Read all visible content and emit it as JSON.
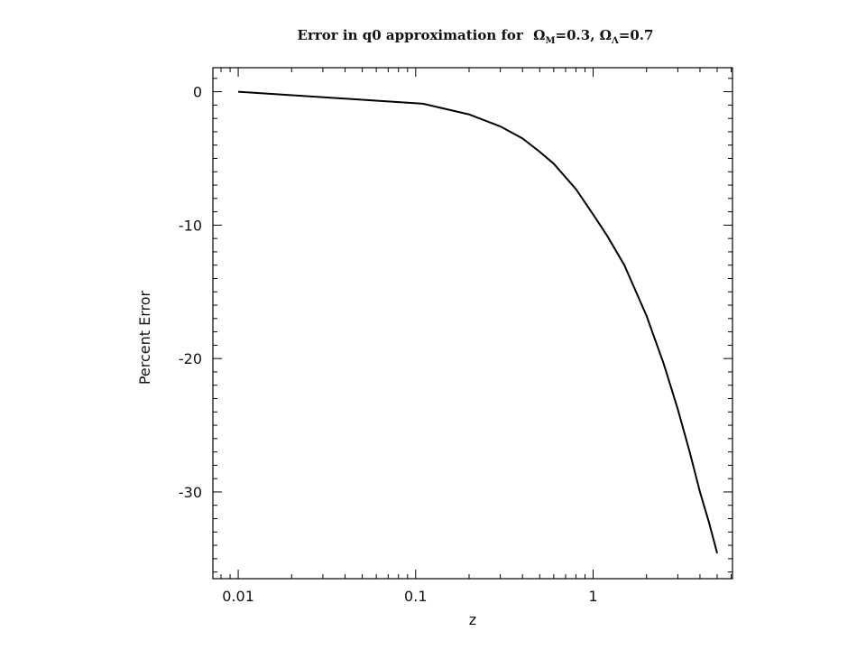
{
  "chart_data": {
    "type": "line",
    "title": "Error in q0 approximation  for",
    "title_params": [
      {
        "symbol": "Ω",
        "sub": "M",
        "text": "=0.3"
      },
      {
        "symbol": "Ω",
        "sub": "Λ",
        "text": "=0.7"
      }
    ],
    "title_separator": ", ",
    "xlabel": "z",
    "ylabel": "Percent Error",
    "xscale": "log",
    "xlim": [
      0.0072,
      6.1
    ],
    "ylim": [
      -36.5,
      1.8
    ],
    "xticks": [
      {
        "value": 0.01,
        "label": "0.01"
      },
      {
        "value": 0.1,
        "label": "0.1"
      },
      {
        "value": 1,
        "label": "1"
      }
    ],
    "yticks": [
      {
        "value": 0,
        "label": "0"
      },
      {
        "value": -10,
        "label": "-10"
      },
      {
        "value": -20,
        "label": "-20"
      },
      {
        "value": -30,
        "label": "-30"
      }
    ],
    "series": [
      {
        "line_color": "#000000",
        "x": [
          0.01,
          0.05,
          0.11,
          0.2,
          0.3,
          0.4,
          0.5,
          0.6,
          0.8,
          1.0,
          1.2,
          1.5,
          2.0,
          2.5,
          3.0,
          3.5,
          4.0,
          4.5,
          5.0
        ],
        "y": [
          0.0,
          -0.6,
          -0.9,
          -1.7,
          -2.6,
          -3.5,
          -4.5,
          -5.4,
          -7.3,
          -9.2,
          -10.8,
          -13.0,
          -16.8,
          -20.4,
          -23.8,
          -27.0,
          -30.0,
          -32.3,
          -34.6
        ]
      }
    ],
    "grid": false
  }
}
